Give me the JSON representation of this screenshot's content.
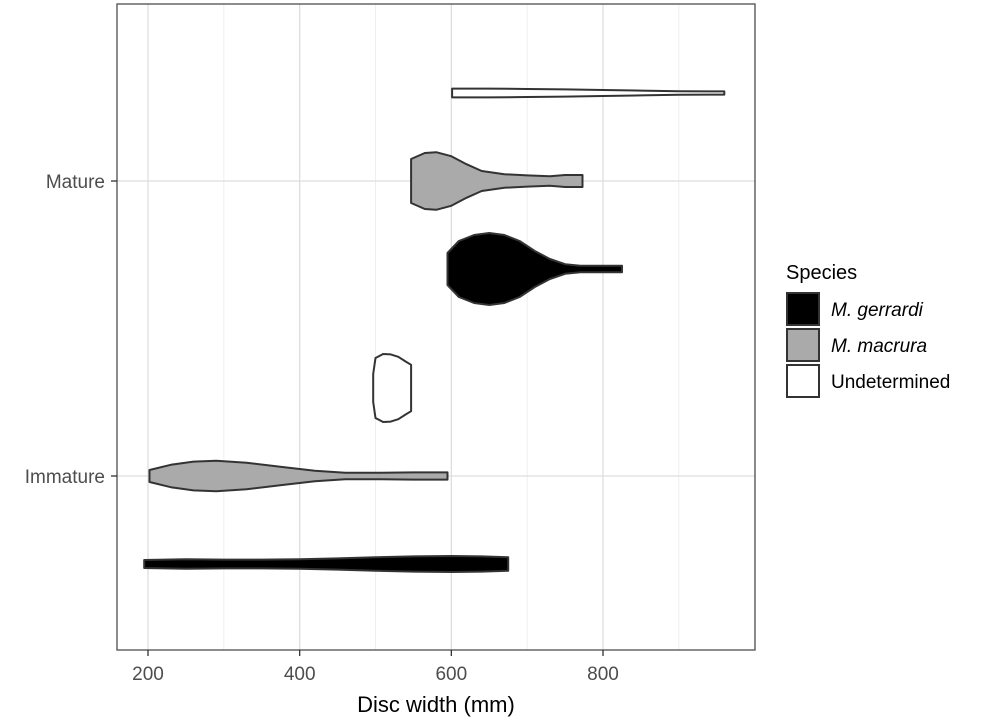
{
  "chart_data": {
    "type": "violin",
    "orientation": "horizontal",
    "xlabel": "Disc width (mm)",
    "ylabel": "",
    "xlim": [
      160,
      1000
    ],
    "x_ticks": [
      200,
      400,
      600,
      800
    ],
    "y_categories": [
      "Immature",
      "Mature"
    ],
    "grid": true,
    "legend": {
      "title": "Species",
      "position": "right",
      "entries": [
        {
          "label": "M. gerrardi",
          "italic": true,
          "color": "#000000"
        },
        {
          "label": "M. macrura",
          "italic": true,
          "color": "#aaaaaa"
        },
        {
          "label": "Undetermined",
          "italic": false,
          "color": "#ffffff"
        }
      ]
    },
    "series": [
      {
        "name": "M. gerrardi",
        "color": "#000000",
        "violins": [
          {
            "category": "Mature",
            "min": 595,
            "max": 825,
            "density": [
              [
                595,
                0.4
              ],
              [
                610,
                0.7
              ],
              [
                630,
                0.85
              ],
              [
                650,
                0.9
              ],
              [
                670,
                0.85
              ],
              [
                690,
                0.7
              ],
              [
                710,
                0.45
              ],
              [
                730,
                0.25
              ],
              [
                750,
                0.12
              ],
              [
                770,
                0.08
              ],
              [
                800,
                0.08
              ],
              [
                825,
                0.08
              ]
            ]
          },
          {
            "category": "Immature",
            "min": 195,
            "max": 675,
            "density": [
              [
                195,
                0.1
              ],
              [
                250,
                0.12
              ],
              [
                300,
                0.11
              ],
              [
                350,
                0.11
              ],
              [
                400,
                0.12
              ],
              [
                450,
                0.14
              ],
              [
                500,
                0.17
              ],
              [
                550,
                0.19
              ],
              [
                600,
                0.2
              ],
              [
                640,
                0.19
              ],
              [
                675,
                0.17
              ]
            ]
          }
        ]
      },
      {
        "name": "M. macrura",
        "color": "#aaaaaa",
        "violins": [
          {
            "category": "Mature",
            "min": 547,
            "max": 773,
            "density": [
              [
                547,
                0.55
              ],
              [
                565,
                0.7
              ],
              [
                580,
                0.72
              ],
              [
                600,
                0.62
              ],
              [
                620,
                0.42
              ],
              [
                640,
                0.25
              ],
              [
                670,
                0.17
              ],
              [
                700,
                0.14
              ],
              [
                730,
                0.12
              ],
              [
                750,
                0.15
              ],
              [
                773,
                0.15
              ]
            ]
          },
          {
            "category": "Immature",
            "min": 202,
            "max": 595,
            "density": [
              [
                202,
                0.15
              ],
              [
                230,
                0.28
              ],
              [
                260,
                0.36
              ],
              [
                290,
                0.38
              ],
              [
                330,
                0.33
              ],
              [
                380,
                0.22
              ],
              [
                420,
                0.13
              ],
              [
                460,
                0.08
              ],
              [
                500,
                0.08
              ],
              [
                550,
                0.09
              ],
              [
                595,
                0.09
              ]
            ]
          }
        ]
      },
      {
        "name": "Undetermined",
        "color": "#ffffff",
        "violins": [
          {
            "category": "Mature",
            "min": 601,
            "max": 960,
            "density": [
              [
                601,
                0.11
              ],
              [
                650,
                0.11
              ],
              [
                700,
                0.1
              ],
              [
                750,
                0.09
              ],
              [
                800,
                0.075
              ],
              [
                850,
                0.06
              ],
              [
                900,
                0.045
              ],
              [
                940,
                0.04
              ],
              [
                960,
                0.04
              ]
            ]
          },
          {
            "category": "Immature",
            "min": 497,
            "max": 547,
            "density": [
              [
                497,
                0.35
              ],
              [
                500,
                0.75
              ],
              [
                510,
                0.85
              ],
              [
                520,
                0.84
              ],
              [
                530,
                0.78
              ],
              [
                540,
                0.66
              ],
              [
                547,
                0.58
              ]
            ]
          }
        ]
      }
    ]
  }
}
